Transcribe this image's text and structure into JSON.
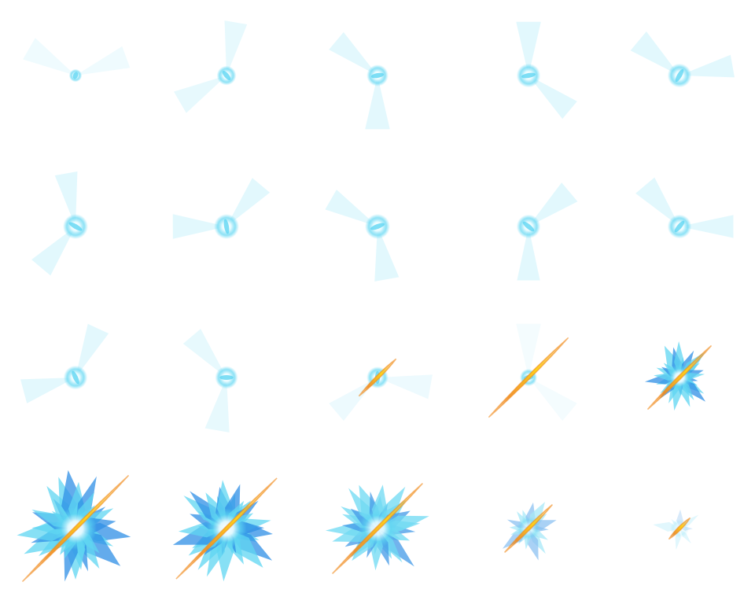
{
  "sprite_sheet": {
    "columns": 5,
    "rows": 4,
    "colors": {
      "glow_core": "#e8fbff",
      "glow_cyan": "#5fd6f2",
      "glow_blue": "#2f8fe6",
      "glow_pale": "#cfe6fb",
      "beam_yellow": "#ffd21a",
      "beam_orange": "#f08a1c"
    },
    "frames": [
      {
        "kind": "swirl",
        "ring": 0.15,
        "rot": 140,
        "core": 0.3,
        "fade": 0.55,
        "beam": 0
      },
      {
        "kind": "swirl",
        "ring": 0.45,
        "rot": 80,
        "core": 0.6,
        "fade": 0.85,
        "beam": 0
      },
      {
        "kind": "swirl",
        "ring": 0.6,
        "rot": 20,
        "core": 0.7,
        "fade": 0.95,
        "beam": 0
      },
      {
        "kind": "swirl",
        "ring": 0.75,
        "rot": 200,
        "core": 0.8,
        "fade": 1.0,
        "beam": 0
      },
      {
        "kind": "swirl",
        "ring": 0.9,
        "rot": 150,
        "core": 0.8,
        "fade": 1.0,
        "beam": 0
      },
      {
        "kind": "swirl",
        "ring": 0.95,
        "rot": 60,
        "core": 0.85,
        "fade": 1.0,
        "beam": 0
      },
      {
        "kind": "swirl",
        "ring": 0.95,
        "rot": 110,
        "core": 0.85,
        "fade": 1.0,
        "beam": 0
      },
      {
        "kind": "swirl",
        "ring": 0.95,
        "rot": 10,
        "core": 0.85,
        "fade": 1.0,
        "beam": 0
      },
      {
        "kind": "swirl",
        "ring": 0.85,
        "rot": 250,
        "core": 0.8,
        "fade": 1.0,
        "beam": 0
      },
      {
        "kind": "swirl",
        "ring": 0.85,
        "rot": 160,
        "core": 0.8,
        "fade": 1.0,
        "beam": 0
      },
      {
        "kind": "swirl",
        "ring": 0.8,
        "rot": 95,
        "core": 0.8,
        "fade": 0.95,
        "beam": 0
      },
      {
        "kind": "swirl",
        "ring": 0.6,
        "rot": 30,
        "core": 0.75,
        "fade": 0.85,
        "beam": 0
      },
      {
        "kind": "swirl",
        "ring": 0.35,
        "rot": 300,
        "core": 0.7,
        "fade": 0.6,
        "beam": 0.35
      },
      {
        "kind": "swirl",
        "ring": 0.15,
        "rot": 200,
        "core": 0.5,
        "fade": 0.4,
        "beam": 0.75
      },
      {
        "kind": "burst",
        "size": 0.55,
        "spikes": 26,
        "fade": 1.0,
        "beam": 0.6
      },
      {
        "kind": "burst",
        "size": 0.9,
        "spikes": 34,
        "fade": 1.0,
        "beam": 1.0
      },
      {
        "kind": "burst",
        "size": 0.85,
        "spikes": 34,
        "fade": 1.0,
        "beam": 0.95
      },
      {
        "kind": "burst",
        "size": 0.8,
        "spikes": 30,
        "fade": 0.9,
        "beam": 0.85
      },
      {
        "kind": "burst",
        "size": 0.5,
        "spikes": 16,
        "fade": 0.55,
        "beam": 0.45
      },
      {
        "kind": "burst",
        "size": 0.4,
        "spikes": 8,
        "fade": 0.25,
        "beam": 0.2
      }
    ]
  }
}
